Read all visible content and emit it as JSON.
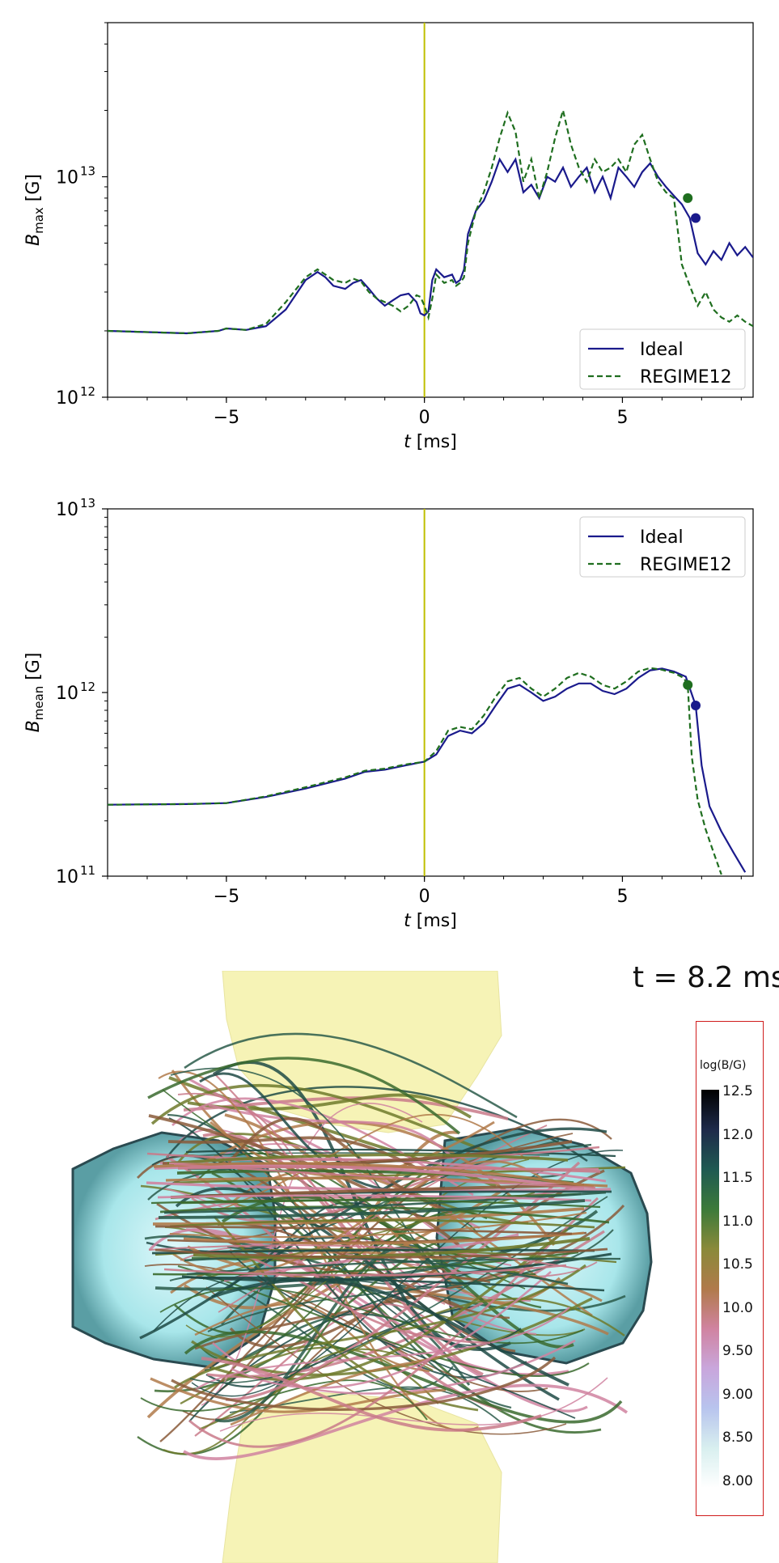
{
  "chart_data": [
    {
      "type": "line",
      "yscale": "log",
      "title": "",
      "xlabel": "t [ms]",
      "xlabel_var": "t",
      "xlabel_unit": "[ms]",
      "ylabel": "B_max [G]",
      "ylabel_var": "B",
      "ylabel_sub": "max",
      "ylabel_unit": "[G]",
      "xlim": [
        -8,
        8.3
      ],
      "ylim": [
        1000000000000.0,
        50000000000000.0
      ],
      "xticks": [
        {
          "value": -5,
          "label": "−5"
        },
        {
          "value": 0,
          "label": "0"
        },
        {
          "value": 5,
          "label": "5"
        }
      ],
      "yticks": [
        {
          "value": 1000000000000.0,
          "base": "10",
          "exp": "12"
        },
        {
          "value": 10000000000000.0,
          "base": "10",
          "exp": "13"
        }
      ],
      "vline": {
        "x": 0,
        "color": "#bfbf00"
      },
      "legend_position": "bottom-right",
      "series": [
        {
          "name": "Ideal",
          "color": "#1a1a8c",
          "dash": "solid",
          "x": [
            -8,
            -6,
            -5.2,
            -5,
            -4.5,
            -4,
            -3.5,
            -3,
            -2.7,
            -2.5,
            -2.3,
            -2,
            -1.8,
            -1.6,
            -1.4,
            -1.2,
            -1,
            -0.8,
            -0.6,
            -0.4,
            -0.2,
            -0.1,
            0,
            0.1,
            0.2,
            0.3,
            0.5,
            0.7,
            0.8,
            0.9,
            1.0,
            1.1,
            1.3,
            1.5,
            1.7,
            1.9,
            2.1,
            2.3,
            2.5,
            2.7,
            2.9,
            3.1,
            3.3,
            3.5,
            3.7,
            3.9,
            4.1,
            4.3,
            4.5,
            4.7,
            4.9,
            5.1,
            5.3,
            5.5,
            5.7,
            5.9,
            6.1,
            6.3,
            6.5,
            6.7,
            6.9,
            7.1,
            7.3,
            7.5,
            7.7,
            7.9,
            8.1,
            8.3
          ],
          "y": [
            2000000000000.0,
            1950000000000.0,
            2000000000000.0,
            2050000000000.0,
            2020000000000.0,
            2100000000000.0,
            2500000000000.0,
            3400000000000.0,
            3700000000000.0,
            3500000000000.0,
            3200000000000.0,
            3100000000000.0,
            3300000000000.0,
            3400000000000.0,
            3100000000000.0,
            2800000000000.0,
            2600000000000.0,
            2750000000000.0,
            2900000000000.0,
            2950000000000.0,
            2700000000000.0,
            2400000000000.0,
            2350000000000.0,
            2450000000000.0,
            3400000000000.0,
            3800000000000.0,
            3500000000000.0,
            3600000000000.0,
            3300000000000.0,
            3400000000000.0,
            3800000000000.0,
            5500000000000.0,
            7000000000000.0,
            7800000000000.0,
            9500000000000.0,
            12000000000000.0,
            10500000000000.0,
            12000000000000.0,
            8500000000000.0,
            9200000000000.0,
            8000000000000.0,
            10000000000000.0,
            9500000000000.0,
            11000000000000.0,
            9000000000000.0,
            10000000000000.0,
            11000000000000.0,
            8500000000000.0,
            10000000000000.0,
            8000000000000.0,
            11000000000000.0,
            10000000000000.0,
            9000000000000.0,
            10500000000000.0,
            11500000000000.0,
            10000000000000.0,
            9000000000000.0,
            8200000000000.0,
            7500000000000.0,
            6500000000000.0,
            4500000000000.0,
            4000000000000.0,
            4600000000000.0,
            4200000000000.0,
            5000000000000.0,
            4400000000000.0,
            4800000000000.0,
            4300000000000.0
          ],
          "marker": {
            "x": 6.85,
            "y": 6500000000000.0
          }
        },
        {
          "name": "REGIME12",
          "color": "#1f6e1f",
          "dash": "dashed",
          "x": [
            -8,
            -6,
            -5.2,
            -5,
            -4.5,
            -4,
            -3.5,
            -3,
            -2.7,
            -2.5,
            -2.3,
            -2,
            -1.8,
            -1.6,
            -1.4,
            -1.2,
            -1,
            -0.8,
            -0.6,
            -0.4,
            -0.2,
            -0.1,
            0,
            0.1,
            0.2,
            0.3,
            0.5,
            0.7,
            0.8,
            0.9,
            1.0,
            1.1,
            1.3,
            1.5,
            1.7,
            1.9,
            2.1,
            2.3,
            2.5,
            2.7,
            2.9,
            3.1,
            3.3,
            3.5,
            3.7,
            3.9,
            4.1,
            4.3,
            4.5,
            4.7,
            4.9,
            5.1,
            5.3,
            5.5,
            5.7,
            5.9,
            6.1,
            6.3,
            6.5,
            6.7,
            6.9,
            7.1,
            7.3,
            7.5,
            7.7,
            7.9,
            8.1,
            8.3
          ],
          "y": [
            2000000000000.0,
            1950000000000.0,
            2000000000000.0,
            2050000000000.0,
            2020000000000.0,
            2150000000000.0,
            2700000000000.0,
            3500000000000.0,
            3800000000000.0,
            3600000000000.0,
            3400000000000.0,
            3300000000000.0,
            3450000000000.0,
            3350000000000.0,
            3000000000000.0,
            2800000000000.0,
            2700000000000.0,
            2600000000000.0,
            2450000000000.0,
            2600000000000.0,
            2900000000000.0,
            2850000000000.0,
            2600000000000.0,
            2300000000000.0,
            2800000000000.0,
            3600000000000.0,
            3300000000000.0,
            3400000000000.0,
            3200000000000.0,
            3300000000000.0,
            3500000000000.0,
            5000000000000.0,
            7000000000000.0,
            8500000000000.0,
            11000000000000.0,
            15000000000000.0,
            19500000000000.0,
            16000000000000.0,
            9500000000000.0,
            12000000000000.0,
            8000000000000.0,
            10500000000000.0,
            15000000000000.0,
            20000000000000.0,
            14000000000000.0,
            11000000000000.0,
            9500000000000.0,
            12000000000000.0,
            10500000000000.0,
            11000000000000.0,
            12000000000000.0,
            10500000000000.0,
            14000000000000.0,
            15500000000000.0,
            12000000000000.0,
            9500000000000.0,
            8500000000000.0,
            8000000000000.0,
            4000000000000.0,
            3200000000000.0,
            2600000000000.0,
            3000000000000.0,
            2500000000000.0,
            2300000000000.0,
            2200000000000.0,
            2350000000000.0,
            2200000000000.0,
            2100000000000.0
          ],
          "marker": {
            "x": 6.65,
            "y": 8000000000000.0
          }
        }
      ]
    },
    {
      "type": "line",
      "yscale": "log",
      "title": "",
      "xlabel": "t [ms]",
      "xlabel_var": "t",
      "xlabel_unit": "[ms]",
      "ylabel": "B_mean [G]",
      "ylabel_var": "B",
      "ylabel_sub": "mean",
      "ylabel_unit": "[G]",
      "xlim": [
        -8,
        8.3
      ],
      "ylim": [
        100000000000.0,
        10000000000000.0
      ],
      "xticks": [
        {
          "value": -5,
          "label": "−5"
        },
        {
          "value": 0,
          "label": "0"
        },
        {
          "value": 5,
          "label": "5"
        }
      ],
      "yticks": [
        {
          "value": 100000000000.0,
          "base": "10",
          "exp": "11"
        },
        {
          "value": 1000000000000.0,
          "base": "10",
          "exp": "12"
        },
        {
          "value": 10000000000000.0,
          "base": "10",
          "exp": "13"
        }
      ],
      "vline": {
        "x": 0,
        "color": "#bfbf00"
      },
      "legend_position": "top-right",
      "series": [
        {
          "name": "Ideal",
          "color": "#1a1a8c",
          "dash": "solid",
          "x": [
            -8,
            -6,
            -5,
            -4,
            -3,
            -2,
            -1.5,
            -1,
            -0.5,
            0,
            0.3,
            0.6,
            0.9,
            1.2,
            1.5,
            1.8,
            2.1,
            2.4,
            2.7,
            3.0,
            3.3,
            3.6,
            3.9,
            4.2,
            4.5,
            4.8,
            5.1,
            5.4,
            5.7,
            6.0,
            6.3,
            6.6,
            6.85,
            7.0,
            7.2,
            7.5,
            7.8,
            8.1
          ],
          "y": [
            245000000000.0,
            247000000000.0,
            250000000000.0,
            270000000000.0,
            300000000000.0,
            340000000000.0,
            370000000000.0,
            380000000000.0,
            400000000000.0,
            420000000000.0,
            460000000000.0,
            580000000000.0,
            620000000000.0,
            600000000000.0,
            680000000000.0,
            850000000000.0,
            1050000000000.0,
            1100000000000.0,
            1000000000000.0,
            900000000000.0,
            950000000000.0,
            1050000000000.0,
            1120000000000.0,
            1120000000000.0,
            1020000000000.0,
            980000000000.0,
            1050000000000.0,
            1200000000000.0,
            1320000000000.0,
            1350000000000.0,
            1300000000000.0,
            1220000000000.0,
            850000000000.0,
            400000000000.0,
            240000000000.0,
            175000000000.0,
            135000000000.0,
            105000000000.0
          ],
          "marker": {
            "x": 6.85,
            "y": 850000000000.0
          }
        },
        {
          "name": "REGIME12",
          "color": "#1f6e1f",
          "dash": "dashed",
          "x": [
            -8,
            -6,
            -5,
            -4,
            -3,
            -2,
            -1.5,
            -1,
            -0.5,
            0,
            0.3,
            0.6,
            0.9,
            1.2,
            1.5,
            1.8,
            2.1,
            2.4,
            2.7,
            3.0,
            3.3,
            3.6,
            3.9,
            4.2,
            4.5,
            4.8,
            5.1,
            5.4,
            5.7,
            6.0,
            6.3,
            6.55,
            6.65,
            6.75,
            6.9,
            7.1,
            7.3,
            7.5
          ],
          "y": [
            245000000000.0,
            247000000000.0,
            250000000000.0,
            272000000000.0,
            305000000000.0,
            345000000000.0,
            375000000000.0,
            385000000000.0,
            405000000000.0,
            420000000000.0,
            480000000000.0,
            620000000000.0,
            650000000000.0,
            630000000000.0,
            750000000000.0,
            950000000000.0,
            1150000000000.0,
            1200000000000.0,
            1050000000000.0,
            950000000000.0,
            1050000000000.0,
            1200000000000.0,
            1280000000000.0,
            1220000000000.0,
            1100000000000.0,
            1050000000000.0,
            1150000000000.0,
            1300000000000.0,
            1360000000000.0,
            1330000000000.0,
            1280000000000.0,
            1200000000000.0,
            1100000000000.0,
            450000000000.0,
            260000000000.0,
            180000000000.0,
            135000000000.0,
            102000000000.0
          ],
          "marker": {
            "x": 6.65,
            "y": 1100000000000.0
          }
        }
      ]
    }
  ],
  "render_panel": {
    "time_label": "t = 8.2 ms",
    "colorbar": {
      "title": "log(B/G)",
      "ticks": [
        "12.5",
        "12.0",
        "11.5",
        "11.0",
        "10.5",
        "10.0",
        "9.50",
        "9.00",
        "8.50",
        "8.00"
      ],
      "stops": [
        "#000000",
        "#1e2a4a",
        "#1f5a52",
        "#3c7a3a",
        "#8a8a3a",
        "#b07a4a",
        "#d083a0",
        "#c9a6dc",
        "#b8c4ee",
        "#d8efef",
        "#ffffff"
      ],
      "border_color": "#d01c1c"
    },
    "colors": {
      "cyan_surface": "#b9eef0",
      "yellow_surface": "#f6f3b6",
      "dark_surface": "#1c3a40"
    }
  }
}
